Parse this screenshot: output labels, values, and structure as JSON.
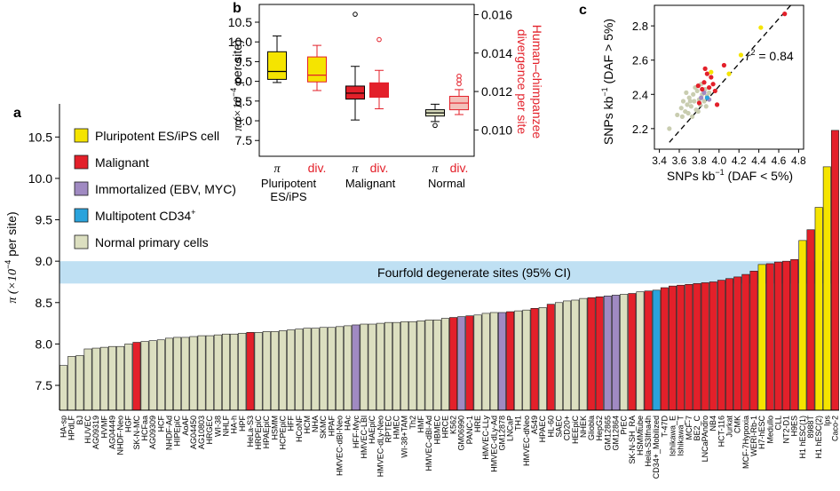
{
  "chart_data": [
    {
      "panel": "a",
      "type": "bar",
      "ylabel_pre": "π (×10",
      "ylabel_exp": "−4",
      "ylabel_post": " per site)",
      "ylim": [
        7.2,
        10.9
      ],
      "yticks": [
        "7.5",
        "8.0",
        "8.5",
        "9.0",
        "9.5",
        "10.0",
        "10.5"
      ],
      "ytick_values": [
        7.5,
        8.0,
        8.5,
        9.0,
        9.5,
        10.0,
        10.5
      ],
      "ci_band": {
        "low": 8.73,
        "high": 9.0,
        "label": "Fourfold degenerate sites (95% CI)"
      },
      "legend": [
        {
          "key": "pluri",
          "label": "Pluripotent ES/iPS cell",
          "color": "#f5e400"
        },
        {
          "key": "malig",
          "label": "Malignant",
          "color": "#e3202a"
        },
        {
          "key": "immort",
          "label": "Immortalized (EBV, MYC)",
          "color": "#a08ac2"
        },
        {
          "key": "multi",
          "label": "Multipotent CD34",
          "label_sup": "+",
          "color": "#2aa3dc"
        },
        {
          "key": "normal",
          "label": "Normal primary cells",
          "color": "#dcdfc0"
        }
      ],
      "categories": [
        "HA-sp",
        "HPdLF",
        "BJ",
        "HUVEC",
        "AG09319",
        "HVMF",
        "AG04449",
        "NHDF-Neo",
        "HGF",
        "SK-N-MC",
        "HCFaa",
        "AG09309",
        "HCF",
        "NHDF-Ad",
        "HIPEpiC",
        "AoAF",
        "AG04450",
        "AG10803",
        "HRGEC",
        "WI-38",
        "NHLF",
        "HA-h",
        "HPF",
        "HeLa-S3",
        "HRPEpiC",
        "HPAEpiC",
        "HSMM",
        "HCPEpiC",
        "HFF",
        "HCoNF",
        "HCM",
        "NHA",
        "SKMC",
        "HPAF",
        "HMVEC-dBl-Neo",
        "HAc",
        "HFF-Myc",
        "HMVEC-LBl",
        "HAEpiC",
        "HMVEC-dLy-Neo",
        "RPTEC",
        "HMEC",
        "WI-38+TAM",
        "Th2",
        "HMF",
        "HMVEC-dBl-Ad",
        "HBMEC",
        "HRCE",
        "K562",
        "GM06990",
        "PANC-1",
        "HRE",
        "HMVEC-LLy",
        "HMVEC-dLy-Ad",
        "GM12878",
        "LNCaP",
        "TH1",
        "HMVEC-dNeo",
        "A549",
        "HPAEC",
        "HL-60",
        "SAEC",
        "CD20+",
        "HEEpiC",
        "NHEK",
        "Gliobla",
        "HepG2",
        "GM12865",
        "GM12864",
        "PrEC",
        "SK-N-SH_RA",
        "HSMMtube",
        "Hela-S3Ifna4h",
        "CD34+_Mobilized",
        "T-47D",
        "Ishikawa_E",
        "Ishikawa_T",
        "MCF-7",
        "BE2_C",
        "LNCaPAndro",
        "NB4",
        "HCT-116",
        "Jurkat",
        "CMK",
        "MCF-7Hypoxia",
        "WERI-Rb-1",
        "H7-hESC",
        "Medullo",
        "CLL",
        "NT2-D1",
        "H9ES",
        "H1 hESC(1)",
        "8988T",
        "H1 hESC(2)",
        "Ips",
        "Caco-2"
      ],
      "values": [
        7.74,
        7.85,
        7.86,
        7.94,
        7.95,
        7.96,
        7.97,
        7.97,
        8.0,
        8.02,
        8.03,
        8.04,
        8.05,
        8.07,
        8.08,
        8.08,
        8.09,
        8.1,
        8.1,
        8.11,
        8.12,
        8.12,
        8.13,
        8.14,
        8.14,
        8.15,
        8.15,
        8.16,
        8.17,
        8.18,
        8.19,
        8.19,
        8.2,
        8.2,
        8.21,
        8.22,
        8.23,
        8.24,
        8.24,
        8.25,
        8.26,
        8.26,
        8.27,
        8.27,
        8.28,
        8.29,
        8.29,
        8.31,
        8.32,
        8.33,
        8.34,
        8.35,
        8.37,
        8.38,
        8.38,
        8.39,
        8.4,
        8.41,
        8.43,
        8.44,
        8.48,
        8.5,
        8.52,
        8.53,
        8.55,
        8.56,
        8.57,
        8.58,
        8.59,
        8.6,
        8.61,
        8.63,
        8.64,
        8.65,
        8.68,
        8.7,
        8.71,
        8.72,
        8.73,
        8.74,
        8.75,
        8.77,
        8.79,
        8.81,
        8.84,
        8.88,
        8.96,
        8.97,
        8.99,
        9.0,
        9.02,
        9.25,
        9.38,
        9.65,
        10.14,
        10.58
      ],
      "groups": [
        "normal",
        "normal",
        "normal",
        "normal",
        "normal",
        "normal",
        "normal",
        "normal",
        "normal",
        "malig",
        "normal",
        "normal",
        "normal",
        "normal",
        "normal",
        "normal",
        "normal",
        "normal",
        "normal",
        "normal",
        "normal",
        "normal",
        "normal",
        "malig",
        "normal",
        "normal",
        "normal",
        "normal",
        "normal",
        "normal",
        "normal",
        "normal",
        "normal",
        "normal",
        "normal",
        "normal",
        "immort",
        "normal",
        "normal",
        "normal",
        "normal",
        "normal",
        "normal",
        "normal",
        "normal",
        "normal",
        "normal",
        "normal",
        "malig",
        "immort",
        "malig",
        "normal",
        "normal",
        "normal",
        "immort",
        "malig",
        "normal",
        "normal",
        "malig",
        "normal",
        "malig",
        "normal",
        "normal",
        "normal",
        "normal",
        "malig",
        "malig",
        "immort",
        "immort",
        "normal",
        "malig",
        "normal",
        "malig",
        "multi",
        "malig",
        "malig",
        "malig",
        "malig",
        "malig",
        "malig",
        "malig",
        "malig",
        "malig",
        "malig",
        "malig",
        "malig",
        "pluri",
        "malig",
        "malig",
        "malig",
        "malig",
        "pluri",
        "malig",
        "pluri",
        "pluri",
        "malig"
      ]
    },
    {
      "panel": "b",
      "type": "box",
      "ylabel_pre": "π (×10",
      "ylabel_exp": "−4",
      "ylabel_post": " per site)",
      "ylim": [
        7.1,
        10.95
      ],
      "yticks": [
        "7.5",
        "8.0",
        "8.5",
        "9.0",
        "9.5",
        "10.0",
        "10.5"
      ],
      "ytick_values": [
        7.5,
        8.0,
        8.5,
        9.0,
        9.5,
        10.0,
        10.5
      ],
      "y2label": "Human–chimpanzee divergence per site",
      "y2label_line1": "Human–chimpanzee",
      "y2label_line2": "divergence per site",
      "y2lim": [
        0.00863,
        0.01653
      ],
      "y2ticks": [
        "0.010",
        "0.012",
        "0.014",
        "0.016"
      ],
      "y2tick_values": [
        0.01,
        0.012,
        0.014,
        0.016
      ],
      "group_labels": [
        [
          "Pluripotent",
          "ES/iPS"
        ],
        [
          "Malignant"
        ],
        [
          "Normal"
        ]
      ],
      "sub_labels": [
        "π",
        "div."
      ],
      "boxes": [
        {
          "group": "Pluripotent ES/iPS",
          "measure": "π",
          "axis": "left",
          "fill": "#f5e400",
          "whisker_low": 8.97,
          "q1": 9.05,
          "median": 9.25,
          "q3": 9.75,
          "whisker_high": 10.15,
          "outliers": []
        },
        {
          "group": "Pluripotent ES/iPS",
          "measure": "div.",
          "axis": "right",
          "fill": "#f5e400",
          "whisker_low": 0.01205,
          "q1": 0.0125,
          "median": 0.01285,
          "q3": 0.0138,
          "whisker_high": 0.0144,
          "outliers": []
        },
        {
          "group": "Malignant",
          "measure": "π",
          "axis": "left",
          "fill": "#e3202a",
          "whisker_low": 8.02,
          "q1": 8.55,
          "median": 8.7,
          "q3": 8.88,
          "whisker_high": 9.38,
          "outliers": [
            10.7
          ]
        },
        {
          "group": "Malignant",
          "measure": "div.",
          "axis": "right",
          "fill": "#e3202a",
          "whisker_low": 0.0111,
          "q1": 0.0117,
          "median": 0.0121,
          "q3": 0.01245,
          "whisker_high": 0.0131,
          "outliers": [
            0.0147
          ]
        },
        {
          "group": "Normal",
          "measure": "π",
          "axis": "left",
          "fill": "#dcdfc0",
          "whisker_low": 7.98,
          "q1": 8.12,
          "median": 8.2,
          "q3": 8.28,
          "whisker_high": 8.42,
          "outliers": [
            7.88
          ]
        },
        {
          "group": "Normal",
          "measure": "div.",
          "axis": "right",
          "fill": "#f3c1bb",
          "whisker_low": 0.0108,
          "q1": 0.01105,
          "median": 0.0114,
          "q3": 0.01175,
          "whisker_high": 0.0121,
          "outliers": [
            0.0124,
            0.0126,
            0.0128
          ]
        }
      ]
    },
    {
      "panel": "c",
      "type": "scatter",
      "xlabel_pre": "SNPs kb",
      "xlabel_exp": "−1",
      "xlabel_post": " (DAF < 5%)",
      "ylabel_pre": "SNPs kb",
      "ylabel_exp": "−1",
      "ylabel_post": " (DAF > 5%)",
      "xlim": [
        3.35,
        4.85
      ],
      "ylim": [
        2.08,
        2.92
      ],
      "xticks": [
        "3.4",
        "3.6",
        "3.8",
        "4.0",
        "4.2",
        "4.4",
        "4.6",
        "4.8"
      ],
      "xtick_values": [
        3.4,
        3.6,
        3.8,
        4.0,
        4.2,
        4.4,
        4.6,
        4.8
      ],
      "yticks": [
        "2.2",
        "2.4",
        "2.6",
        "2.8"
      ],
      "ytick_values": [
        2.2,
        2.4,
        2.6,
        2.8
      ],
      "annotation_r": "r",
      "annotation_exp": "2",
      "annotation_post": " = 0.84",
      "fit_line": [
        [
          3.5,
          2.12
        ],
        [
          4.72,
          2.92
        ]
      ],
      "points": [
        {
          "x": 3.5,
          "y": 2.2,
          "g": "normal"
        },
        {
          "x": 3.58,
          "y": 2.28,
          "g": "normal"
        },
        {
          "x": 3.62,
          "y": 2.32,
          "g": "normal"
        },
        {
          "x": 3.64,
          "y": 2.36,
          "g": "normal"
        },
        {
          "x": 3.66,
          "y": 2.3,
          "g": "normal"
        },
        {
          "x": 3.68,
          "y": 2.34,
          "g": "normal"
        },
        {
          "x": 3.7,
          "y": 2.38,
          "g": "normal"
        },
        {
          "x": 3.72,
          "y": 2.33,
          "g": "normal"
        },
        {
          "x": 3.74,
          "y": 2.4,
          "g": "normal"
        },
        {
          "x": 3.75,
          "y": 2.36,
          "g": "normal"
        },
        {
          "x": 3.77,
          "y": 2.31,
          "g": "normal"
        },
        {
          "x": 3.78,
          "y": 2.42,
          "g": "normal"
        },
        {
          "x": 3.8,
          "y": 2.37,
          "g": "normal"
        },
        {
          "x": 3.81,
          "y": 2.34,
          "g": "normal"
        },
        {
          "x": 3.83,
          "y": 2.4,
          "g": "normal"
        },
        {
          "x": 3.85,
          "y": 2.36,
          "g": "normal"
        },
        {
          "x": 3.86,
          "y": 2.43,
          "g": "normal"
        },
        {
          "x": 3.88,
          "y": 2.39,
          "g": "normal"
        },
        {
          "x": 3.69,
          "y": 2.29,
          "g": "normal"
        },
        {
          "x": 3.73,
          "y": 2.27,
          "g": "normal"
        },
        {
          "x": 3.76,
          "y": 2.44,
          "g": "normal"
        },
        {
          "x": 3.79,
          "y": 2.3,
          "g": "normal"
        },
        {
          "x": 3.9,
          "y": 2.41,
          "g": "normal"
        },
        {
          "x": 3.71,
          "y": 2.36,
          "g": "normal"
        },
        {
          "x": 3.67,
          "y": 2.41,
          "g": "normal"
        },
        {
          "x": 3.82,
          "y": 2.46,
          "g": "normal"
        },
        {
          "x": 3.63,
          "y": 2.27,
          "g": "normal"
        },
        {
          "x": 3.87,
          "y": 2.33,
          "g": "normal"
        },
        {
          "x": 3.82,
          "y": 2.38,
          "g": "immort"
        },
        {
          "x": 3.85,
          "y": 2.41,
          "g": "immort"
        },
        {
          "x": 3.9,
          "y": 2.37,
          "g": "immort"
        },
        {
          "x": 3.88,
          "y": 2.38,
          "g": "multi"
        },
        {
          "x": 3.8,
          "y": 2.35,
          "g": "malig"
        },
        {
          "x": 3.85,
          "y": 2.47,
          "g": "malig"
        },
        {
          "x": 3.88,
          "y": 2.52,
          "g": "malig"
        },
        {
          "x": 3.9,
          "y": 2.44,
          "g": "malig"
        },
        {
          "x": 3.92,
          "y": 2.5,
          "g": "malig"
        },
        {
          "x": 3.94,
          "y": 2.46,
          "g": "malig"
        },
        {
          "x": 3.96,
          "y": 2.42,
          "g": "malig"
        },
        {
          "x": 3.83,
          "y": 2.43,
          "g": "malig"
        },
        {
          "x": 3.86,
          "y": 2.55,
          "g": "malig"
        },
        {
          "x": 3.98,
          "y": 2.34,
          "g": "malig"
        },
        {
          "x": 4.05,
          "y": 2.57,
          "g": "malig"
        },
        {
          "x": 4.66,
          "y": 2.87,
          "g": "malig"
        },
        {
          "x": 3.79,
          "y": 2.45,
          "g": "malig"
        },
        {
          "x": 3.92,
          "y": 2.53,
          "g": "pluri"
        },
        {
          "x": 4.1,
          "y": 2.52,
          "g": "pluri"
        },
        {
          "x": 4.22,
          "y": 2.63,
          "g": "pluri"
        },
        {
          "x": 4.42,
          "y": 2.79,
          "g": "pluri"
        }
      ]
    }
  ],
  "panel_labels": {
    "a": "a",
    "b": "b",
    "c": "c"
  }
}
